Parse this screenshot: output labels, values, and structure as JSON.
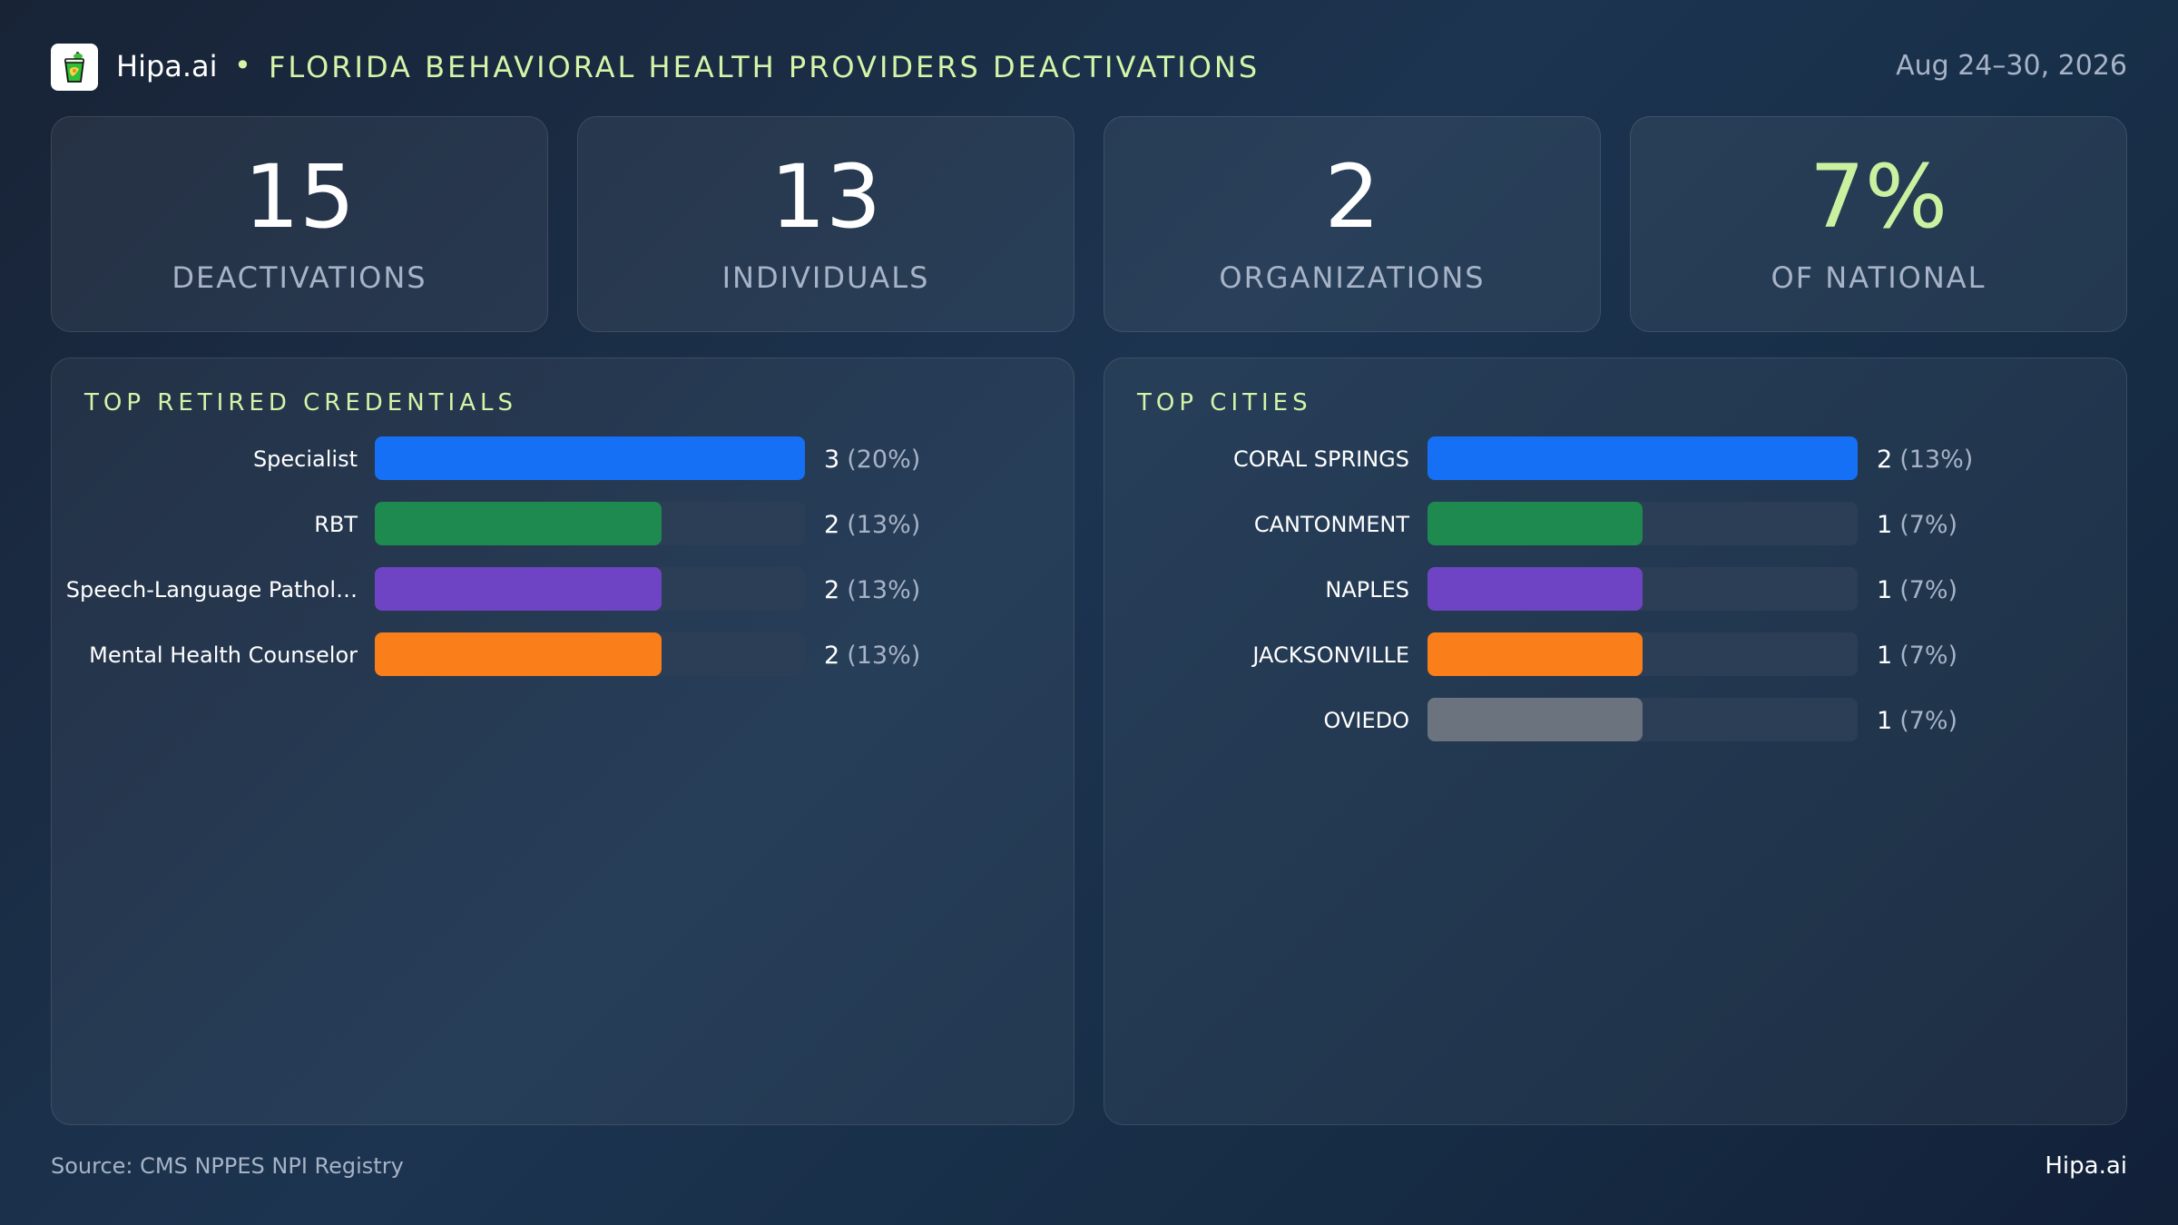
{
  "header": {
    "brand": "Hipa.ai",
    "separator": "•",
    "title": "FLORIDA BEHAVIORAL HEALTH PROVIDERS DEACTIVATIONS",
    "date_range": "Aug 24–30, 2026",
    "logo_icon": "juice-cup-logo-icon"
  },
  "kpis": [
    {
      "value": "15",
      "label": "DEACTIVATIONS"
    },
    {
      "value": "13",
      "label": "INDIVIDUALS"
    },
    {
      "value": "2",
      "label": "ORGANIZATIONS"
    },
    {
      "value": "7%",
      "label": "OF NATIONAL"
    }
  ],
  "colors": {
    "accent": "#d4f5a8",
    "blue": "#1570f5",
    "green": "#1e8a50",
    "purple": "#6f44c4",
    "orange": "#fa7e1a",
    "gray": "#6b737e",
    "track": "#2c3e55"
  },
  "chart_data": [
    {
      "type": "bar",
      "orientation": "horizontal",
      "title": "TOP RETIRED CREDENTIALS",
      "categories": [
        "Specialist",
        "RBT",
        "Speech-Language Pathol…",
        "Mental Health Counselor"
      ],
      "values": [
        3,
        2,
        2,
        2
      ],
      "value_labels": [
        "3",
        "2",
        "2",
        "2"
      ],
      "percent_labels": [
        "(20%)",
        "(13%)",
        "(13%)",
        "(13%)"
      ],
      "bar_colors": [
        "#1570f5",
        "#1e8a50",
        "#6f44c4",
        "#fa7e1a"
      ],
      "xlim": [
        0,
        3
      ]
    },
    {
      "type": "bar",
      "orientation": "horizontal",
      "title": "TOP CITIES",
      "categories": [
        "CORAL SPRINGS",
        "CANTONMENT",
        "NAPLES",
        "JACKSONVILLE",
        "OVIEDO"
      ],
      "values": [
        2,
        1,
        1,
        1,
        1
      ],
      "value_labels": [
        "2",
        "1",
        "1",
        "1",
        "1"
      ],
      "percent_labels": [
        "(13%)",
        "(7%)",
        "(7%)",
        "(7%)",
        "(7%)"
      ],
      "bar_colors": [
        "#1570f5",
        "#1e8a50",
        "#6f44c4",
        "#fa7e1a",
        "#6b737e"
      ],
      "xlim": [
        0,
        2
      ]
    }
  ],
  "footer": {
    "source": "Source: CMS NPPES NPI Registry",
    "brand": "Hipa.ai"
  }
}
